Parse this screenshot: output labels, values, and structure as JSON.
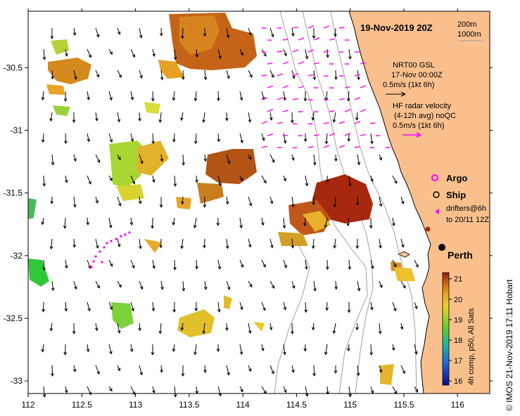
{
  "title": "19-Nov-2019 20Z",
  "scale": {
    "short": "200m",
    "long": "1000m"
  },
  "legend": {
    "model_lines": [
      "NRT00 GSL",
      "17-Nov 00:00Z",
      "0.5m/s (1kt 6h)"
    ],
    "radar_lines": [
      "HF radar velocity",
      "(4-12h avg) noQC",
      "0.5m/s (1kt 6h)"
    ],
    "argo": "Argo",
    "ship": "Ship",
    "drifters_lines": [
      "drifters@6h",
      "to 20/11 12Z"
    ]
  },
  "city": "Perth",
  "axes": {
    "x_ticks": [
      "112",
      "112.5",
      "113",
      "113.5",
      "114",
      "114.5",
      "115",
      "115.5",
      "116"
    ],
    "y_ticks": [
      "-30.5",
      "-31",
      "-31.5",
      "-32",
      "-32.5",
      "-33"
    ],
    "x_values": [
      112,
      112.5,
      113,
      113.5,
      114,
      114.5,
      115,
      115.5,
      116
    ],
    "y_values": [
      -30.5,
      -31,
      -31.5,
      -32,
      -32.5,
      -33
    ],
    "lon_range": [
      112,
      116.3
    ],
    "lat_range": [
      -33.1,
      -30.05
    ]
  },
  "colorbar": {
    "ticks": [
      "21",
      "20",
      "19",
      "18",
      "17",
      "16"
    ],
    "values": [
      21,
      20,
      19,
      18,
      17,
      16
    ],
    "range": [
      15.8,
      21.3
    ],
    "label": "4h comp, p50, All Sats"
  },
  "credit": "© IMOS 21-Nov-2019 17:11 Hobart",
  "colors": {
    "land": "#f9c08e",
    "radar": "#ff00ff",
    "sst_warm": "#a52a0f",
    "sst_mid": "#e4a520",
    "sst_cool": "#5acd28"
  },
  "icons": {
    "argo": "argo-float-icon",
    "ship": "ship-icon",
    "drifter": "drifter-icon",
    "city": "city-dot-icon"
  }
}
